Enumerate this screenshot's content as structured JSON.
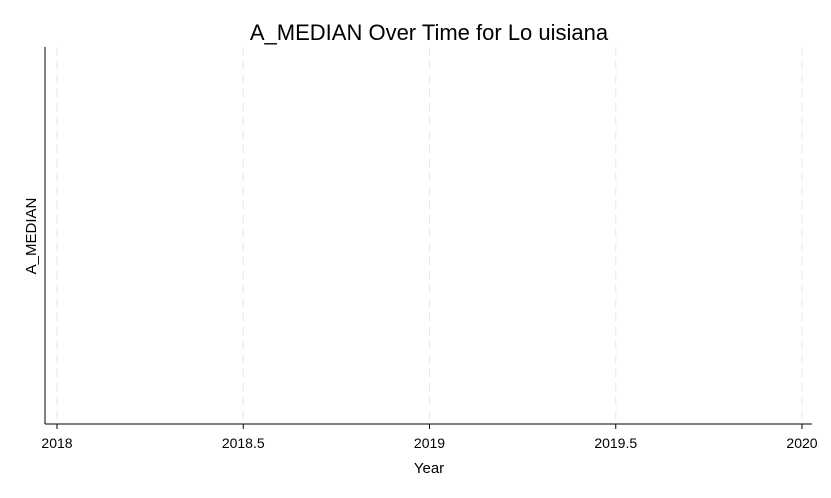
{
  "chart_data": {
    "type": "line",
    "title": "A_MEDIAN Over Time for Lo uisiana",
    "xlabel": "Year",
    "ylabel": "A_MEDIAN",
    "xlim": [
      2018,
      2020
    ],
    "x_ticks": [
      "2018",
      "2018.5",
      "2019",
      "2019.5",
      "2020"
    ],
    "x_tick_values": [
      2018,
      2018.5,
      2019,
      2019.5,
      2020
    ],
    "grid": "x-dashed",
    "series": []
  }
}
